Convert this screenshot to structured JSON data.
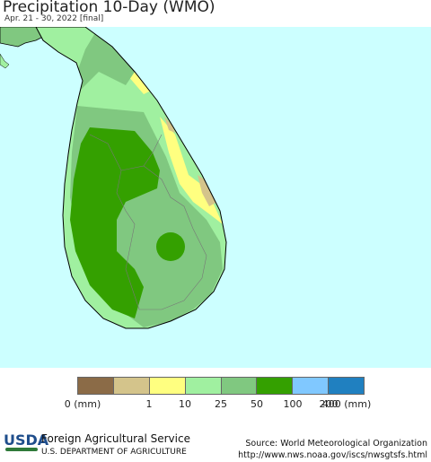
{
  "header": {
    "title": "Precipitation 10-Day (WMO)",
    "subtitle": "Apr. 21 - 30, 2022 [final]"
  },
  "map": {
    "region": "Sri Lanka",
    "ocean_color": "#ccffff"
  },
  "legend": {
    "colors": [
      "#8b6b47",
      "#d4c48b",
      "#ffff80",
      "#a0f0a0",
      "#80c880",
      "#34a000",
      "#80c8ff",
      "#2080c0"
    ],
    "labels": [
      "0 (mm)",
      "1",
      "10",
      "25",
      "50",
      "100",
      "200",
      "400 (mm)"
    ]
  },
  "footer": {
    "logo_text": "USDA",
    "agency": "Foreign Agricultural Service",
    "department": "U.S. DEPARTMENT OF AGRICULTURE",
    "source_line": "Source: World Meteorological Organization",
    "url": "http://www.nws.noaa.gov/iscs/nwsgtsfs.html"
  }
}
